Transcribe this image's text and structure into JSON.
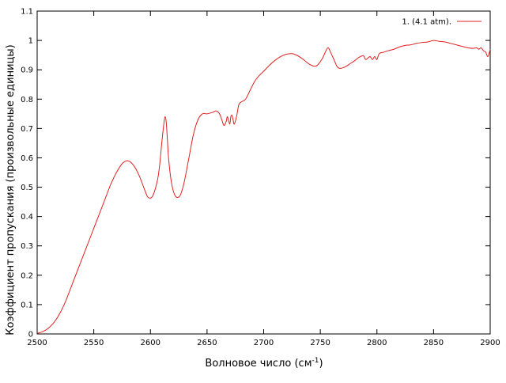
{
  "chart_data": {
    "type": "line",
    "title": "",
    "xlabel": "Волновое число (см",
    "xlabel_sup": "-1",
    "xlabel_suffix": ")",
    "ylabel": "Коэффициент пропускания (произвольные единицы)",
    "xlim": [
      2500,
      2900
    ],
    "ylim": [
      0,
      1.1
    ],
    "xticks": [
      2500,
      2550,
      2600,
      2650,
      2700,
      2750,
      2800,
      2850,
      2900
    ],
    "yticks": [
      0,
      0.1,
      0.2,
      0.3,
      0.4,
      0.5,
      0.6,
      0.7,
      0.8,
      0.9,
      1,
      1.1
    ],
    "grid": false,
    "legend_position": "top-right",
    "series": [
      {
        "name": "1. (4.1 atm).",
        "color": "#e02020",
        "x": [
          2500,
          2505,
          2510,
          2515,
          2520,
          2525,
          2530,
          2535,
          2540,
          2545,
          2550,
          2555,
          2560,
          2565,
          2570,
          2575,
          2580,
          2585,
          2590,
          2595,
          2598,
          2602,
          2606,
          2608,
          2610,
          2612,
          2613,
          2614,
          2615,
          2616,
          2618,
          2620,
          2622,
          2624,
          2626,
          2628,
          2630,
          2634,
          2638,
          2642,
          2646,
          2650,
          2655,
          2658,
          2661,
          2663,
          2665,
          2667,
          2668,
          2670,
          2671,
          2672,
          2673,
          2674,
          2676,
          2678,
          2680,
          2684,
          2688,
          2692,
          2696,
          2700,
          2705,
          2710,
          2715,
          2720,
          2725,
          2730,
          2735,
          2740,
          2745,
          2748,
          2752,
          2755,
          2757,
          2759,
          2762,
          2765,
          2768,
          2772,
          2776,
          2780,
          2784,
          2788,
          2790,
          2792,
          2794,
          2796,
          2798,
          2800,
          2802,
          2806,
          2810,
          2815,
          2820,
          2825,
          2830,
          2835,
          2840,
          2845,
          2850,
          2855,
          2860,
          2865,
          2870,
          2875,
          2880,
          2885,
          2888,
          2890,
          2892,
          2894,
          2896,
          2898,
          2900
        ],
        "y": [
          0.002,
          0.008,
          0.02,
          0.04,
          0.07,
          0.11,
          0.16,
          0.21,
          0.26,
          0.31,
          0.36,
          0.41,
          0.46,
          0.51,
          0.55,
          0.58,
          0.59,
          0.575,
          0.54,
          0.49,
          0.465,
          0.47,
          0.52,
          0.57,
          0.65,
          0.72,
          0.74,
          0.72,
          0.66,
          0.6,
          0.53,
          0.49,
          0.47,
          0.465,
          0.47,
          0.49,
          0.52,
          0.6,
          0.68,
          0.73,
          0.75,
          0.75,
          0.755,
          0.76,
          0.75,
          0.73,
          0.71,
          0.725,
          0.74,
          0.715,
          0.74,
          0.745,
          0.73,
          0.715,
          0.74,
          0.78,
          0.79,
          0.8,
          0.83,
          0.86,
          0.88,
          0.895,
          0.915,
          0.932,
          0.945,
          0.953,
          0.955,
          0.948,
          0.935,
          0.92,
          0.912,
          0.918,
          0.94,
          0.965,
          0.975,
          0.96,
          0.935,
          0.91,
          0.905,
          0.91,
          0.92,
          0.93,
          0.942,
          0.948,
          0.935,
          0.94,
          0.945,
          0.935,
          0.945,
          0.935,
          0.955,
          0.96,
          0.965,
          0.97,
          0.978,
          0.983,
          0.985,
          0.99,
          0.993,
          0.995,
          1.0,
          0.997,
          0.995,
          0.99,
          0.985,
          0.98,
          0.975,
          0.973,
          0.975,
          0.97,
          0.975,
          0.965,
          0.96,
          0.945,
          0.97
        ]
      }
    ]
  }
}
